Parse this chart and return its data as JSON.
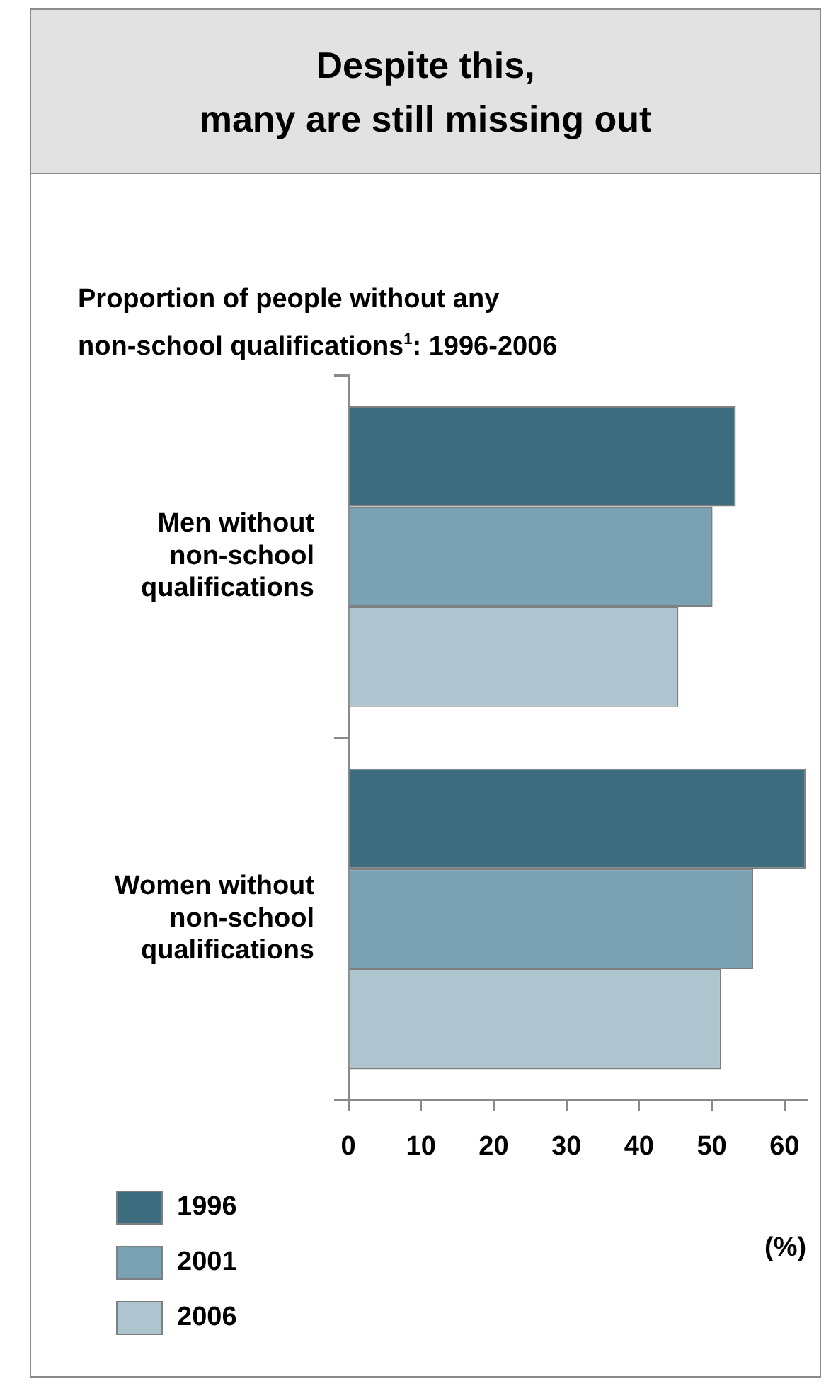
{
  "chart_data": {
    "type": "bar",
    "orientation": "horizontal",
    "title": "Despite this,\nmany are still missing out",
    "subtitle": "Proportion of people without any\nnon-school qualifications$^{1}$: 1996-2006",
    "xlabel": "(%)",
    "categories": [
      "Men without non-school qualifications",
      "Women without non-school qualifications"
    ],
    "series": [
      {
        "name": "1996",
        "color": "#3f6d80",
        "values": [
          53.3,
          62.9
        ]
      },
      {
        "name": "2001",
        "color": "#7aa2b2",
        "values": [
          50.1,
          55.7
        ]
      },
      {
        "name": "2006",
        "color": "#aec5cf",
        "values": [
          45.4,
          51.3
        ]
      }
    ],
    "xlim": [
      0,
      63
    ],
    "xticks": [
      0,
      10,
      20,
      30,
      40,
      50,
      60
    ],
    "grid": false,
    "legend": "bottom left"
  }
}
